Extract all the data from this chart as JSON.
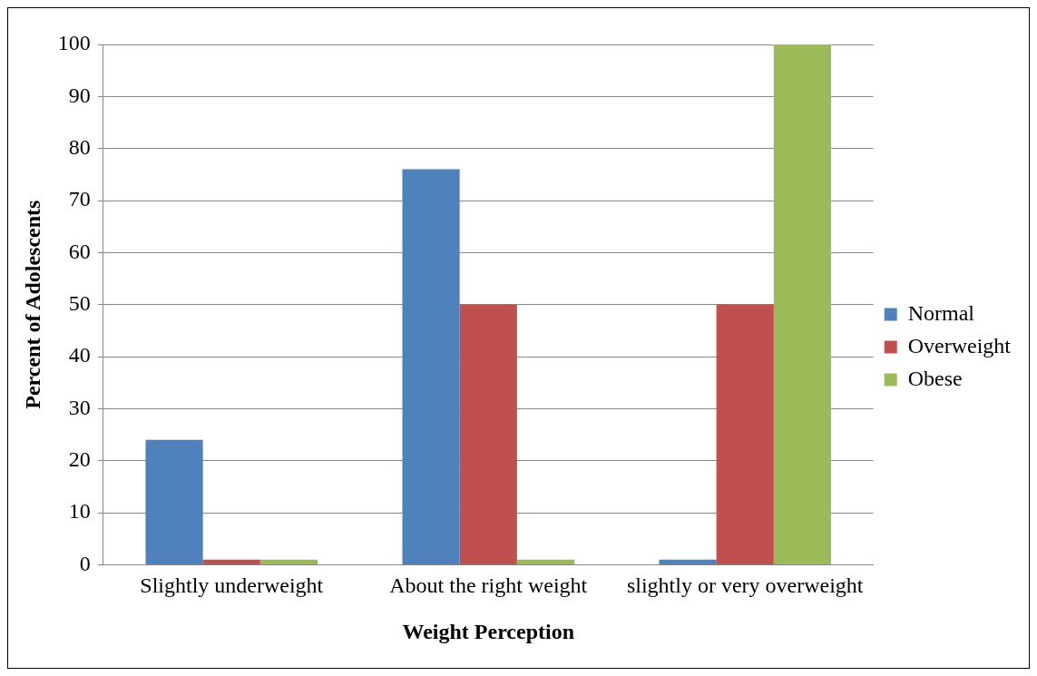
{
  "chart_data": {
    "type": "bar",
    "xlabel": "Weight Perception",
    "ylabel": "Percent of Adolescents",
    "categories": [
      "Slightly underweight",
      "About the right weight",
      "slightly or very overweight"
    ],
    "series": [
      {
        "name": "Normal",
        "color": "#4f81bd",
        "values": [
          24,
          76,
          1
        ]
      },
      {
        "name": "Overweight",
        "color": "#c0504d",
        "values": [
          1,
          50,
          50
        ]
      },
      {
        "name": "Obese",
        "color": "#9bbb59",
        "values": [
          1,
          1,
          100
        ]
      }
    ],
    "ylim": [
      0,
      100
    ],
    "yticks": [
      0,
      10,
      20,
      30,
      40,
      50,
      60,
      70,
      80,
      90,
      100
    ],
    "grid": "y",
    "legend": "right"
  }
}
